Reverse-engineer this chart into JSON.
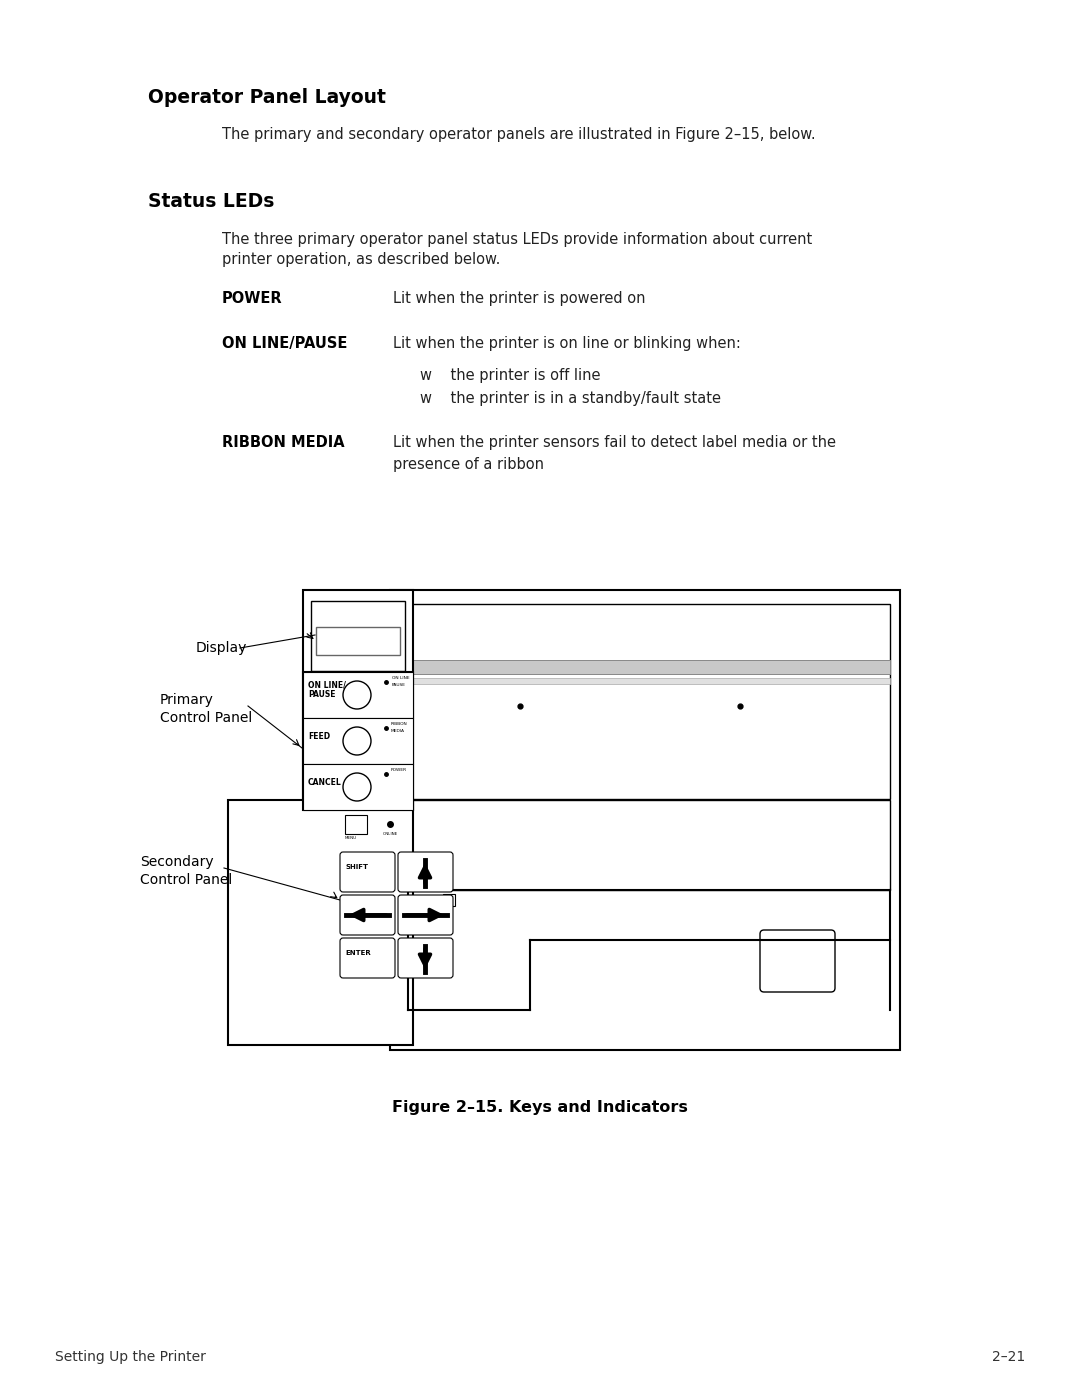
{
  "bg_color": "#ffffff",
  "title_operator": "Operator Panel Layout",
  "title_status": "Status LEDs",
  "intro_text": "The primary and secondary operator panels are illustrated in Figure 2–15, below.",
  "status_intro_1": "The three primary operator panel status LEDs provide information about current",
  "status_intro_2": "printer operation, as described below.",
  "power_label": "POWER",
  "power_desc": "Lit when the printer is powered on",
  "online_label": "ON LINE/PAUSE",
  "online_desc": "Lit when the printer is on line or blinking when:",
  "bullet1": "w    the printer is off line",
  "bullet2": "w    the printer is in a standby/fault state",
  "ribbon_label": "RIBBON MEDIA",
  "ribbon_desc_1": "Lit when the printer sensors fail to detect label media or the",
  "ribbon_desc_2": "presence of a ribbon",
  "figure_caption": "Figure 2–15. Keys and Indicators",
  "footer_left": "Setting Up the Printer",
  "footer_right": "2–21",
  "display_label": "Display",
  "primary_label_1": "Primary",
  "primary_label_2": "Control Panel",
  "secondary_label_1": "Secondary",
  "secondary_label_2": "Control Panel"
}
